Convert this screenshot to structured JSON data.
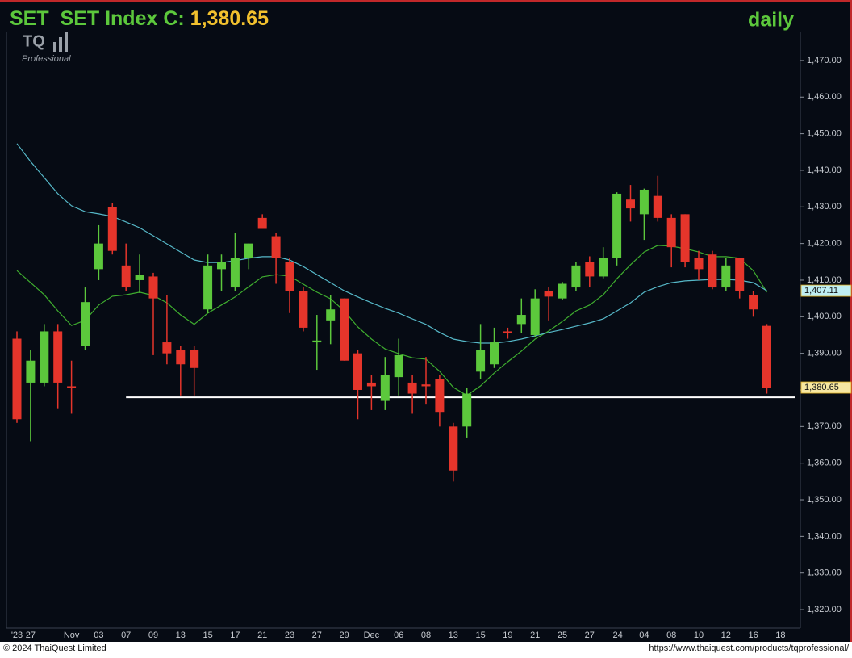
{
  "chart_data": {
    "type": "candlestick",
    "title": "SET_SET Index C:",
    "close_label": "1,380.65",
    "interval": "daily",
    "up_color": "#5cc83c",
    "down_color": "#e5352b",
    "categories": [
      "'23",
      "27",
      null,
      null,
      "Nov",
      null,
      "03",
      null,
      "07",
      null,
      "09",
      null,
      "13",
      null,
      "15",
      null,
      "17",
      null,
      "21",
      null,
      "23",
      null,
      "27",
      null,
      "29",
      null,
      "Dec",
      null,
      "06",
      null,
      "08",
      null,
      "13",
      null,
      "15",
      null,
      "19",
      null,
      "21",
      null,
      "25",
      null,
      "27",
      null,
      "'24",
      null,
      "04",
      null,
      "08",
      null,
      "10",
      null,
      "12",
      null,
      "16",
      null,
      "18"
    ],
    "open": [
      1394,
      1382,
      1382,
      1396,
      1381,
      1392,
      1413,
      1430,
      1414,
      1410,
      1411,
      1393,
      1391,
      1391,
      1402,
      1413,
      1408,
      1416,
      1427,
      1422,
      1415,
      1407,
      1393,
      1399,
      1405,
      1390,
      1382,
      1377,
      1383.5,
      1382,
      1381.5,
      1383,
      1370,
      1370,
      1385,
      1387,
      1396,
      1398,
      1395,
      1407,
      1405,
      1408,
      1415,
      1411,
      1416,
      1432,
      1428,
      1433,
      1427,
      1428,
      1416,
      1417,
      1408,
      1416,
      1406,
      1397.5,
      null
    ],
    "high": [
      1396,
      1391,
      1398,
      1398,
      1388,
      1408,
      1425,
      1431,
      1420,
      1417,
      1412,
      1406,
      1392,
      1392,
      1417,
      1417,
      1423,
      1420,
      1428,
      1423,
      1416,
      1408,
      1400.5,
      1406,
      1405,
      1391,
      1384,
      1389,
      1394,
      1384,
      1389,
      1384,
      1371,
      1380.5,
      1398,
      1397,
      1397,
      1405,
      1407.5,
      1408,
      1409.5,
      1415,
      1416.5,
      1419,
      1434,
      1436,
      1435,
      1438.5,
      1428,
      1428,
      1418,
      1418,
      1416,
      1416,
      1407,
      1398,
      null
    ],
    "low": [
      1371,
      1366,
      1381,
      1375,
      1373.5,
      1391,
      1410,
      1417,
      1407,
      1406.5,
      1389.5,
      1387,
      1378.5,
      1378.5,
      1401,
      1407,
      1407,
      1413,
      1424,
      1409,
      1401,
      1396,
      1385.5,
      1392.5,
      1388,
      1372,
      1374.5,
      1374.5,
      1378.5,
      1373.5,
      1376,
      1370,
      1355,
      1367,
      1383,
      1386,
      1394,
      1395.5,
      1394.5,
      1399,
      1404.5,
      1407,
      1408,
      1410.5,
      1414,
      1426,
      1421,
      1426,
      1413.5,
      1413.5,
      1410,
      1407.5,
      1407,
      1405,
      1400,
      1379,
      null
    ],
    "close": [
      1372,
      1388,
      1396,
      1382,
      1380.5,
      1404,
      1420,
      1418,
      1408,
      1411.5,
      1405,
      1390,
      1387,
      1386,
      1414,
      1415,
      1416,
      1420,
      1424,
      1416,
      1407,
      1397,
      1393.5,
      1402,
      1388,
      1380,
      1381,
      1384,
      1389.5,
      1379,
      1381,
      1374,
      1358,
      1379,
      1391,
      1393,
      1395.5,
      1400.5,
      1405,
      1405.5,
      1409,
      1414,
      1411,
      1416,
      1433.6,
      1429.6,
      1434.7,
      1427,
      1419,
      1415,
      1413,
      1408,
      1414,
      1407,
      1402,
      1380.65,
      null
    ],
    "lines": [
      {
        "color": "#3fae2f",
        "values": [
          1412.6,
          1409.3,
          1406.0,
          1401.6,
          1397.6,
          1399.0,
          1403.2,
          1405.6,
          1406.0,
          1406.7,
          1405.8,
          1403.8,
          1400.5,
          1397.9,
          1401.0,
          1403.2,
          1405.4,
          1408.2,
          1410.9,
          1411.5,
          1411.1,
          1408.9,
          1406.7,
          1404.9,
          1401.6,
          1397.2,
          1393.9,
          1391.2,
          1389.9,
          1388.8,
          1388.4,
          1385.1,
          1380.7,
          1378.5,
          1381.1,
          1384.6,
          1387.7,
          1390.6,
          1393.9,
          1396.1,
          1398.7,
          1401.6,
          1403.2,
          1406.0,
          1410.4,
          1414.2,
          1417.7,
          1419.5,
          1419.3,
          1418.6,
          1417.7,
          1416.4,
          1416.4,
          1416.0,
          1412.6,
          1406.7,
          null
        ]
      },
      {
        "color": "#56b8c8",
        "end_label": "1,407.11",
        "values": [
          1447.3,
          1442.4,
          1438.0,
          1433.6,
          1430.3,
          1428.7,
          1428.1,
          1427.4,
          1425.9,
          1424.3,
          1422.1,
          1419.9,
          1417.7,
          1415.5,
          1414.8,
          1414.8,
          1415.3,
          1416.0,
          1416.4,
          1416.4,
          1415.5,
          1413.7,
          1411.5,
          1409.3,
          1407.1,
          1405.4,
          1403.8,
          1402.3,
          1401.0,
          1399.4,
          1397.9,
          1395.7,
          1393.9,
          1393.2,
          1392.8,
          1392.8,
          1393.2,
          1393.9,
          1394.8,
          1395.7,
          1396.5,
          1397.4,
          1398.3,
          1399.4,
          1401.6,
          1403.8,
          1406.7,
          1408.2,
          1409.3,
          1409.8,
          1410.0,
          1410.2,
          1410.2,
          1410.0,
          1409.3,
          1407.11,
          null
        ]
      }
    ],
    "support_level": 1378,
    "ylim": [
      1315.6,
      1477.7
    ],
    "yticks": [
      {
        "value": 1320,
        "label": "1,320.00"
      },
      {
        "value": 1330,
        "label": "1,330.00"
      },
      {
        "value": 1340,
        "label": "1,340.00"
      },
      {
        "value": 1350,
        "label": "1,350.00"
      },
      {
        "value": 1360,
        "label": "1,360.00"
      },
      {
        "value": 1370,
        "label": "1,370.00"
      },
      {
        "value": 1380,
        "label": "1,380.00"
      },
      {
        "value": 1390,
        "label": "1,390.00"
      },
      {
        "value": 1400,
        "label": "1,400.00"
      },
      {
        "value": 1410,
        "label": "1,410.00"
      },
      {
        "value": 1420,
        "label": "1,420.00"
      },
      {
        "value": 1430,
        "label": "1,430.00"
      },
      {
        "value": 1440,
        "label": "1,440.00"
      },
      {
        "value": 1450,
        "label": "1,450.00"
      },
      {
        "value": 1460,
        "label": "1,460.00"
      },
      {
        "value": 1470,
        "label": "1,470.00"
      }
    ]
  },
  "branding": {
    "logo": "TQ",
    "edition": "Professional"
  },
  "footer": {
    "copyright": "© 2024 ThaiQuest Limited",
    "url": "https://www.thaiquest.com/products/tqprofessional/"
  }
}
